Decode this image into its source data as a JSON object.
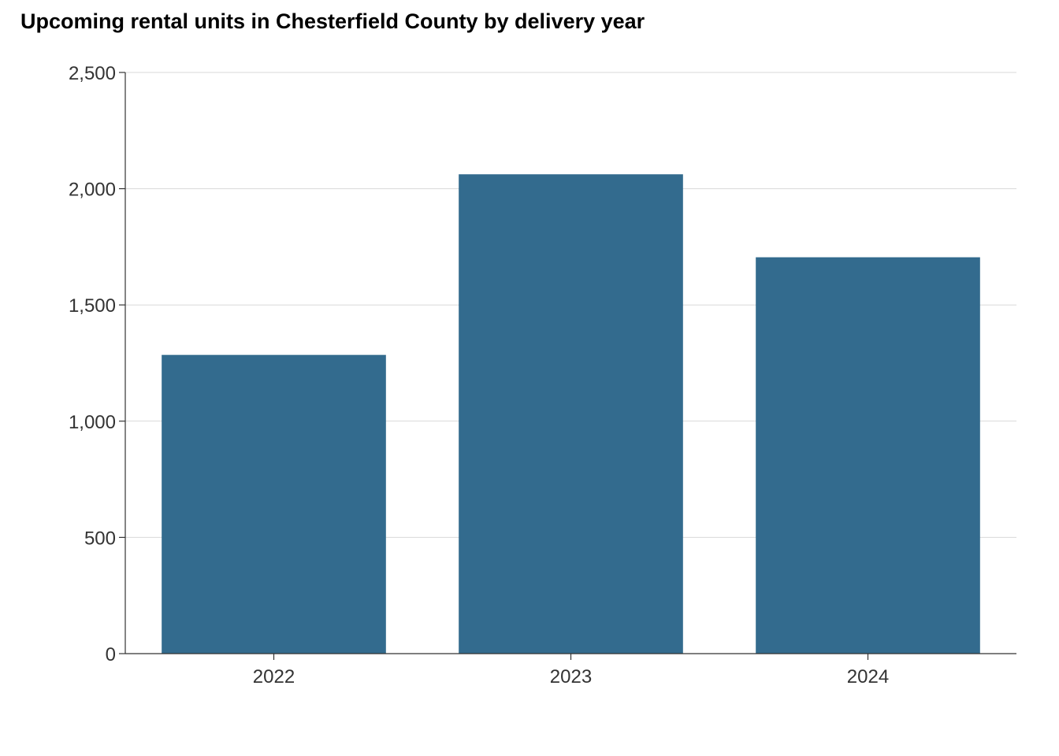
{
  "chart_data": {
    "type": "bar",
    "title": "Upcoming rental units in Chesterfield County by delivery year",
    "xlabel": "",
    "ylabel": "",
    "categories": [
      "2022",
      "2023",
      "2024"
    ],
    "values": [
      1285,
      2062,
      1705
    ],
    "ylim": [
      0,
      2500
    ],
    "yticks": [
      0,
      500,
      1000,
      1500,
      2000,
      2500
    ],
    "ytick_labels": [
      "0",
      "500",
      "1,000",
      "1,500",
      "2,000",
      "2,500"
    ],
    "grid": "horizontal",
    "legend": "none",
    "bar_color": "#336b8e"
  }
}
